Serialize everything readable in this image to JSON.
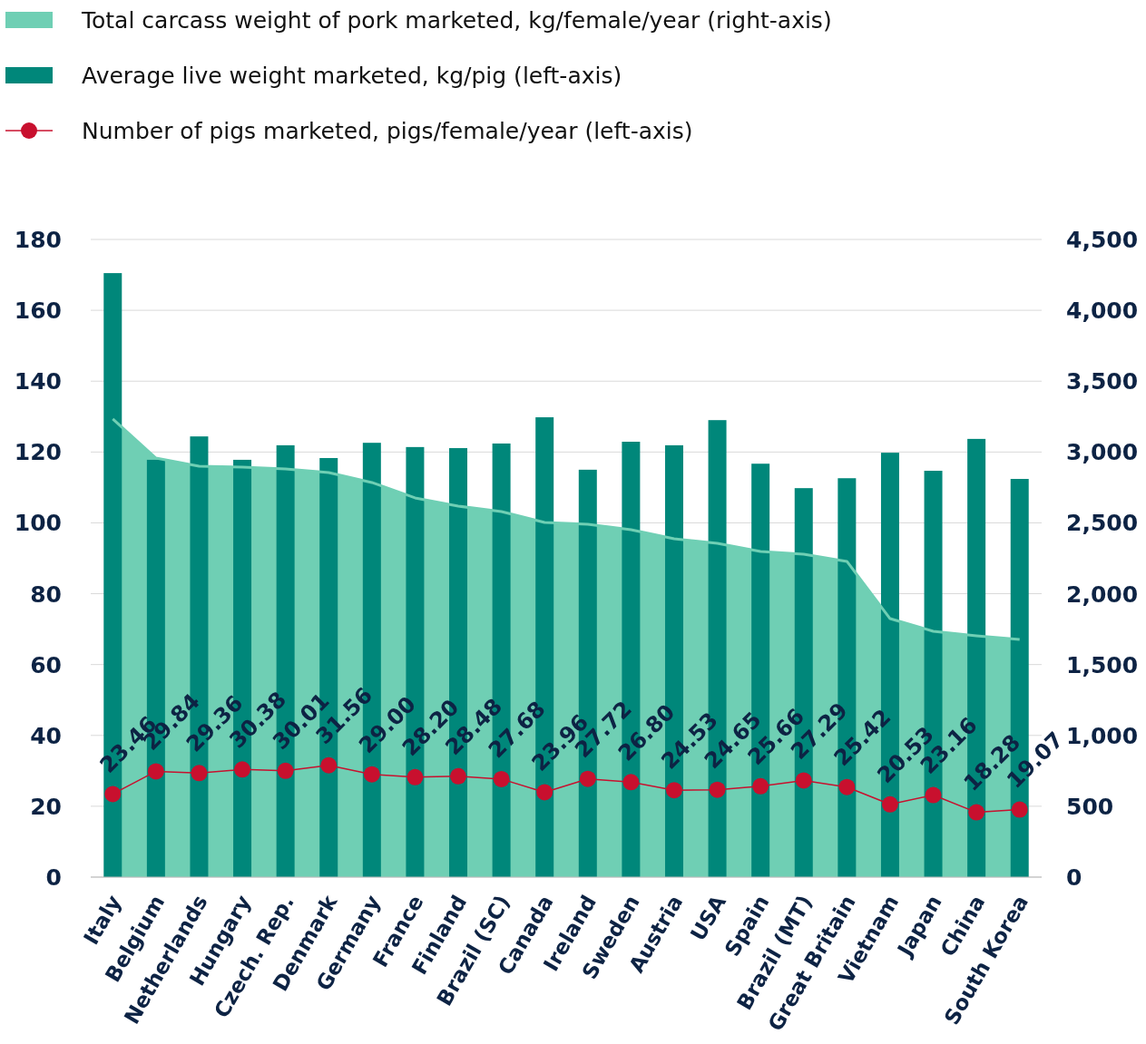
{
  "chart_data": {
    "type": "bar",
    "categories": [
      "Italy",
      "Belgium",
      "Netherlands",
      "Hungary",
      "Czech. Rep.",
      "Denmark",
      "Germany",
      "France",
      "Finland",
      "Brazil (SC)",
      "Canada",
      "Ireland",
      "Sweden",
      "Austria",
      "USA",
      "Spain",
      "Brazil (MT)",
      "Great Britain",
      "Vietnam",
      "Japan",
      "China",
      "South Korea"
    ],
    "series": [
      {
        "name": "Total carcass weight of pork marketed, kg/female/year (right-axis)",
        "type": "area",
        "axis": "y2",
        "color": "#6fcfb4",
        "values": [
          3233,
          2957,
          2900,
          2893,
          2881,
          2855,
          2785,
          2676,
          2618,
          2580,
          2503,
          2490,
          2452,
          2388,
          2356,
          2298,
          2279,
          2228,
          1824,
          1735,
          1703,
          1677
        ]
      },
      {
        "name": "Average live weight marketed, kg/pig (left-axis)",
        "color": "#00877a",
        "values": [
          170.5,
          117.8,
          124.4,
          117.8,
          121.9,
          118.3,
          122.6,
          121.4,
          121.1,
          122.4,
          129.8,
          115.0,
          122.9,
          121.9,
          129.0,
          116.7,
          109.8,
          112.6,
          119.8,
          114.7,
          123.7,
          112.4
        ]
      },
      {
        "name": "Number of pigs marketed, pigs/female/year (left-axis)",
        "type": "line",
        "color": "#c8102e",
        "marker": "circle",
        "values": [
          23.46,
          29.84,
          29.36,
          30.38,
          30.01,
          31.56,
          29.0,
          28.2,
          28.48,
          27.68,
          23.96,
          27.72,
          26.8,
          24.53,
          24.65,
          25.66,
          27.29,
          25.42,
          20.53,
          23.16,
          18.28,
          19.07
        ],
        "value_labels": [
          "23.46",
          "29.84",
          "29.36",
          "30.38",
          "30.01",
          "31.56",
          "29.00",
          "28.20",
          "28.48",
          "27.68",
          "23.96",
          "27.72",
          "26.80",
          "24.53",
          "24.65",
          "25.66",
          "27.29",
          "25.42",
          "20.53",
          "23.16",
          "18.28",
          "19.07"
        ]
      }
    ],
    "ylim": [
      0,
      180
    ],
    "yticks": [
      0,
      20,
      40,
      60,
      80,
      100,
      120,
      140,
      160,
      180
    ],
    "y2lim": [
      0,
      4500
    ],
    "y2ticks": [
      {
        "value": 0,
        "label": "0"
      },
      {
        "value": 500,
        "label": "500"
      },
      {
        "value": 1000,
        "label": "1,000"
      },
      {
        "value": 1500,
        "label": "1,500"
      },
      {
        "value": 2000,
        "label": "2,000"
      },
      {
        "value": 2500,
        "label": "2,500"
      },
      {
        "value": 3000,
        "label": "3,000"
      },
      {
        "value": 3500,
        "label": "3,500"
      },
      {
        "value": 4000,
        "label": "4,000"
      },
      {
        "value": 4500,
        "label": "4,500"
      }
    ],
    "grid": "y",
    "legend": "top"
  }
}
